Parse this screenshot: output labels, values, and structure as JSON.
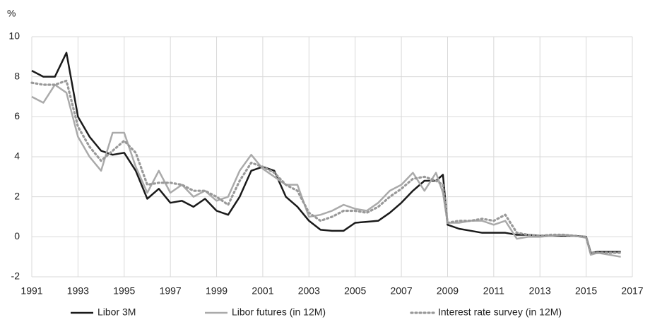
{
  "chart_data": {
    "type": "line",
    "y_unit": "%",
    "x": [
      1991,
      1991.5,
      1992,
      1992.5,
      1993,
      1993.5,
      1994,
      1994.5,
      1995,
      1995.5,
      1996,
      1996.5,
      1997,
      1997.5,
      1998,
      1998.5,
      1999,
      1999.5,
      2000,
      2000.5,
      2001,
      2001.5,
      2002,
      2002.5,
      2003,
      2003.5,
      2004,
      2004.5,
      2005,
      2005.5,
      2006,
      2006.5,
      2007,
      2007.5,
      2008,
      2008.5,
      2008.8,
      2009,
      2009.5,
      2010,
      2010.5,
      2011,
      2011.5,
      2012,
      2012.5,
      2013,
      2013.5,
      2014,
      2014.5,
      2015,
      2015.2,
      2015.5,
      2016,
      2016.5
    ],
    "series": [
      {
        "name": "Libor 3M",
        "color": "#1a1a1a",
        "style": "solid",
        "values": [
          8.3,
          8.0,
          8.0,
          9.2,
          6.0,
          5.0,
          4.3,
          4.1,
          4.2,
          3.3,
          1.9,
          2.4,
          1.7,
          1.8,
          1.5,
          1.9,
          1.3,
          1.1,
          2.0,
          3.3,
          3.5,
          3.3,
          2.0,
          1.5,
          0.8,
          0.35,
          0.3,
          0.3,
          0.7,
          0.75,
          0.8,
          1.2,
          1.7,
          2.3,
          2.8,
          2.8,
          3.1,
          0.6,
          0.4,
          0.3,
          0.2,
          0.2,
          0.2,
          0.1,
          0.1,
          0.05,
          0.05,
          0.05,
          0.05,
          0.0,
          -0.8,
          -0.75,
          -0.75,
          -0.75
        ]
      },
      {
        "name": "Libor futures (in 12M)",
        "color": "#aaaaaa",
        "style": "solid",
        "values": [
          7.0,
          6.7,
          7.6,
          7.2,
          5.0,
          4.0,
          3.3,
          5.2,
          5.2,
          3.5,
          2.2,
          3.3,
          2.2,
          2.6,
          2.0,
          2.3,
          1.8,
          2.0,
          3.3,
          4.1,
          3.4,
          3.0,
          2.6,
          2.6,
          1.0,
          1.1,
          1.3,
          1.6,
          1.4,
          1.3,
          1.7,
          2.3,
          2.6,
          3.2,
          2.3,
          3.2,
          2.2,
          0.7,
          0.7,
          0.8,
          0.8,
          0.6,
          0.8,
          -0.1,
          0.0,
          0.0,
          0.05,
          0.1,
          0.05,
          -0.05,
          -0.9,
          -0.8,
          -0.9,
          -1.0
        ]
      },
      {
        "name": "Interest rate survey (in 12M)",
        "color": "#999999",
        "style": "dotted",
        "values": [
          7.7,
          7.6,
          7.6,
          7.8,
          5.5,
          4.5,
          3.8,
          4.3,
          4.8,
          4.2,
          2.6,
          2.7,
          2.7,
          2.6,
          2.3,
          2.3,
          2.0,
          1.6,
          2.8,
          3.7,
          3.5,
          3.2,
          2.6,
          2.3,
          1.2,
          0.8,
          1.0,
          1.3,
          1.3,
          1.2,
          1.5,
          2.0,
          2.4,
          2.9,
          3.0,
          2.8,
          2.6,
          0.7,
          0.8,
          0.8,
          0.9,
          0.8,
          1.1,
          0.2,
          0.1,
          0.05,
          0.1,
          0.1,
          0.05,
          0.0,
          -0.8,
          -0.8,
          -0.8,
          -0.8
        ]
      }
    ],
    "xlim": [
      1991,
      2017
    ],
    "xticks": [
      1991,
      1993,
      1995,
      1997,
      1999,
      2001,
      2003,
      2005,
      2007,
      2009,
      2011,
      2013,
      2015,
      2017
    ],
    "ylim": [
      -2,
      10
    ],
    "yticks": [
      -2,
      0,
      2,
      4,
      6,
      8,
      10
    ],
    "grid": true,
    "legend": "bottom"
  }
}
